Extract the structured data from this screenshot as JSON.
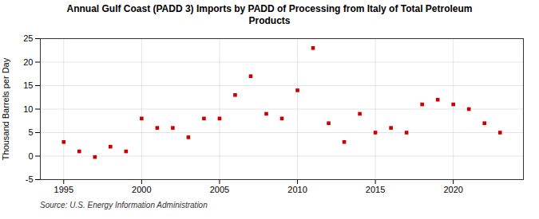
{
  "chart_data": {
    "type": "scatter",
    "title": "Annual Gulf Coast (PADD 3) Imports by PADD of Processing from Italy of Total Petroleum\nProducts",
    "ylabel": "Thousand Barrels per Day",
    "source": "Source: U.S. Energy Information Administration",
    "x": [
      1995,
      1996,
      1997,
      1998,
      1999,
      2000,
      2001,
      2002,
      2003,
      2004,
      2005,
      2006,
      2007,
      2008,
      2009,
      2010,
      2011,
      2012,
      2013,
      2014,
      2015,
      2016,
      2017,
      2018,
      2019,
      2020,
      2021,
      2022,
      2023
    ],
    "values": [
      3,
      1,
      -0.2,
      2,
      1,
      8,
      6,
      6,
      4,
      8,
      8,
      13,
      17,
      9,
      8,
      14,
      23,
      7,
      3,
      9,
      5,
      6,
      5,
      11,
      12,
      11,
      10,
      7,
      5
    ],
    "color": "#cc0000",
    "marker": "square",
    "xlim": [
      1993.5,
      2024.5
    ],
    "ylim": [
      -5,
      25
    ],
    "xticks": [
      1995,
      2000,
      2005,
      2010,
      2015,
      2020
    ],
    "yticks": [
      -5,
      0,
      5,
      10,
      15,
      20,
      25
    ],
    "grid": true
  }
}
